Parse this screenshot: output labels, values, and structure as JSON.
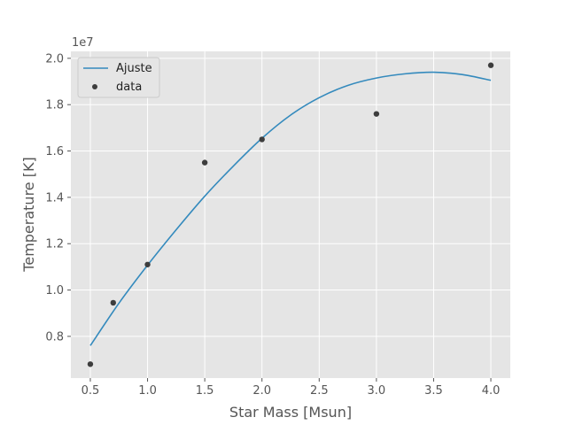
{
  "chart_data": {
    "type": "scatter",
    "title": "",
    "xlabel": "Star Mass [Msun]",
    "ylabel": "Temperature [K]",
    "y_offset_label": "1e7",
    "xlim": [
      0.33,
      4.17
    ],
    "ylim": [
      6.2,
      20.3
    ],
    "xticks": [
      0.5,
      1.0,
      1.5,
      2.0,
      2.5,
      3.0,
      3.5,
      4.0
    ],
    "xtick_labels": [
      "0.5",
      "1.0",
      "1.5",
      "2.0",
      "2.5",
      "3.0",
      "3.5",
      "4.0"
    ],
    "yticks": [
      8,
      10,
      12,
      14,
      16,
      18,
      20
    ],
    "ytick_labels": [
      "0.8",
      "1.0",
      "1.2",
      "1.4",
      "1.6",
      "1.8",
      "2.0"
    ],
    "grid": true,
    "legend_position": "top-left",
    "series": [
      {
        "name": "Ajuste",
        "kind": "line",
        "color": "#348ABD",
        "x": [
          0.5,
          0.75,
          1.0,
          1.25,
          1.5,
          1.75,
          2.0,
          2.25,
          2.5,
          2.75,
          3.0,
          3.25,
          3.5,
          3.75,
          4.0
        ],
        "y": [
          7.6,
          9.43,
          11.07,
          12.6,
          14.05,
          15.35,
          16.55,
          17.55,
          18.3,
          18.83,
          19.15,
          19.33,
          19.4,
          19.3,
          19.05
        ]
      },
      {
        "name": "data",
        "kind": "scatter",
        "color": "#3d3d3d",
        "x": [
          0.5,
          0.7,
          1.0,
          1.5,
          2.0,
          3.0,
          4.0
        ],
        "y": [
          6.8,
          9.45,
          11.1,
          15.5,
          16.5,
          17.6,
          19.7
        ]
      }
    ]
  },
  "colors": {
    "plot_background": "#E5E5E5",
    "grid": "#ffffff",
    "tick_mark": "#555555"
  }
}
